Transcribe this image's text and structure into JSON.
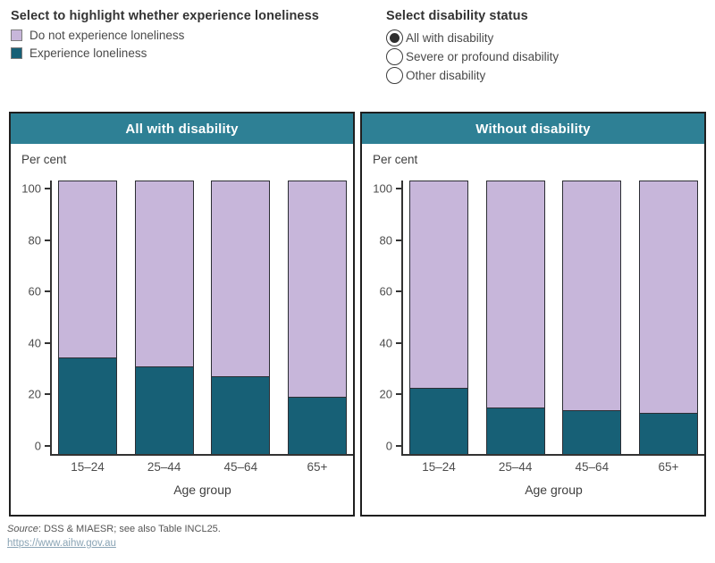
{
  "legend": {
    "title": "Select to highlight whether experience loneliness",
    "items": [
      {
        "label": "Do not experience loneliness",
        "color": "#c7b6da"
      },
      {
        "label": "Experience loneliness",
        "color": "#176076"
      }
    ]
  },
  "radio": {
    "title": "Select disability status",
    "options": [
      {
        "label": "All with disability",
        "selected": true
      },
      {
        "label": "Severe or profound disability",
        "selected": false
      },
      {
        "label": "Other disability",
        "selected": false
      }
    ]
  },
  "chart_data": [
    {
      "type": "bar",
      "stacked": true,
      "title": "All with disability",
      "categories": [
        "15–24",
        "25–44",
        "45–64",
        "65+"
      ],
      "series": [
        {
          "name": "Experience loneliness",
          "values": [
            34.5,
            31,
            27,
            19
          ],
          "color": "#176076"
        },
        {
          "name": "Do not experience loneliness",
          "values": [
            65.5,
            69,
            73,
            81
          ],
          "color": "#c7b6da"
        }
      ],
      "stack_order_bottom_to_top": [
        "Experience loneliness",
        "Do not experience loneliness"
      ],
      "xlabel": "Age group",
      "ylabel": "Per cent",
      "ylim": [
        0,
        100
      ],
      "yticks": [
        0,
        20,
        40,
        60,
        80,
        100
      ],
      "grid": false,
      "legend_position": "outside-top-left"
    },
    {
      "type": "bar",
      "stacked": true,
      "title": "Without disability",
      "categories": [
        "15–24",
        "25–44",
        "45–64",
        "65+"
      ],
      "series": [
        {
          "name": "Experience loneliness",
          "values": [
            22.5,
            15,
            14,
            13
          ],
          "color": "#176076"
        },
        {
          "name": "Do not experience loneliness",
          "values": [
            77.5,
            85,
            86,
            87
          ],
          "color": "#c7b6da"
        }
      ],
      "stack_order_bottom_to_top": [
        "Experience loneliness",
        "Do not experience loneliness"
      ],
      "xlabel": "Age group",
      "ylabel": "Per cent",
      "ylim": [
        0,
        100
      ],
      "yticks": [
        0,
        20,
        40,
        60,
        80,
        100
      ],
      "grid": false,
      "legend_position": "outside-top-left"
    }
  ],
  "footer": {
    "source_label": "Source",
    "source_text": ": DSS & MIAESR; see also Table INCL25.",
    "link": "https://www.aihw.gov.au"
  },
  "colors": {
    "panel_header_bg": "#2e8095",
    "bar_experience": "#176076",
    "bar_do_not_experience": "#c7b6da",
    "bar_border": "#2c2e34",
    "axis": "#333333",
    "link": "#8aa4b5"
  }
}
